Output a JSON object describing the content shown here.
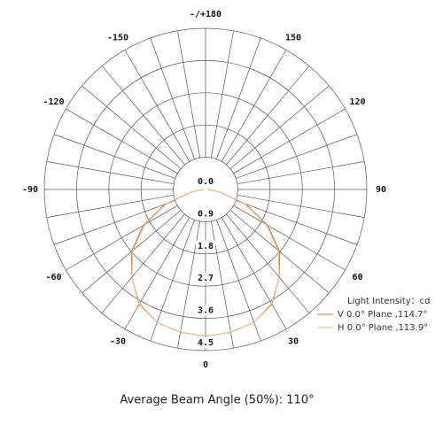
{
  "chart_data": {
    "type": "polar",
    "title": "Average Beam Angle (50%): 110°",
    "legend_title": "Light Intensity：cd",
    "x": [
      -90,
      -80,
      -70,
      -60,
      -50,
      -40,
      -30,
      -20,
      -10,
      0,
      10,
      20,
      30,
      40,
      50,
      60,
      70,
      80,
      90
    ],
    "series": [
      {
        "name": "V 0.0° Plane ,114.7°",
        "color": "#c8783c",
        "values": [
          0.05,
          0.4,
          1.2,
          2.0,
          2.7,
          3.2,
          3.7,
          3.95,
          4.05,
          4.1,
          4.05,
          3.95,
          3.7,
          3.2,
          2.7,
          2.0,
          1.2,
          0.4,
          0.05
        ]
      },
      {
        "name": "H 0.0° Plane ,113.9°",
        "color": "#f0b890",
        "values": [
          0.05,
          0.4,
          1.15,
          1.95,
          2.65,
          3.2,
          3.68,
          3.95,
          4.05,
          4.1,
          4.05,
          3.95,
          3.68,
          3.2,
          2.65,
          1.95,
          1.15,
          0.4,
          0.05
        ]
      }
    ],
    "ylim": [
      0,
      4.5
    ],
    "yticks": [
      {
        "value": 0,
        "label": "0.0"
      },
      0.9,
      1.8,
      2.7,
      3.6,
      4.5
    ],
    "xticks": [
      {
        "value": 180,
        "label": "-/+180"
      },
      -150,
      -120,
      -90,
      -60,
      -30,
      0,
      30,
      60,
      90,
      120,
      150
    ],
    "grid": true
  }
}
